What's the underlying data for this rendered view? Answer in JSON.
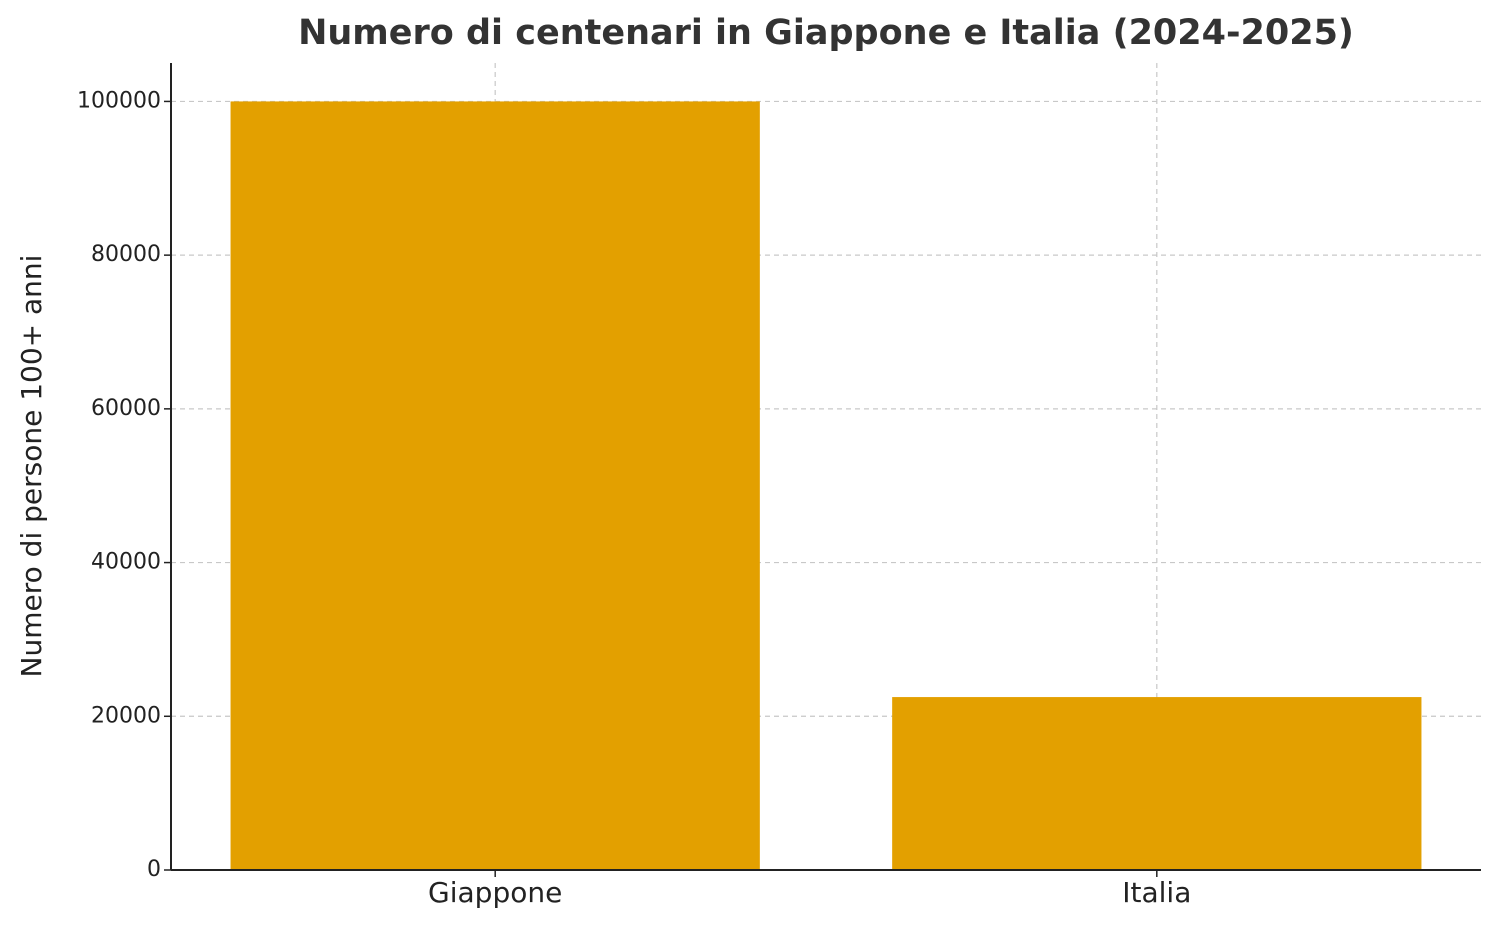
{
  "chart_data": {
    "type": "bar",
    "title": "Numero di centenari in Giappone e Italia (2024-2025)",
    "y_label": "Numero di persone 100+ anni",
    "categories": [
      "Giappone",
      "Italia"
    ],
    "values": [
      100000,
      22500
    ],
    "color": "#e3a000",
    "ylim": [
      0,
      105000
    ],
    "yticks": [
      0,
      20000,
      40000,
      60000,
      80000,
      100000
    ],
    "grid": true
  }
}
